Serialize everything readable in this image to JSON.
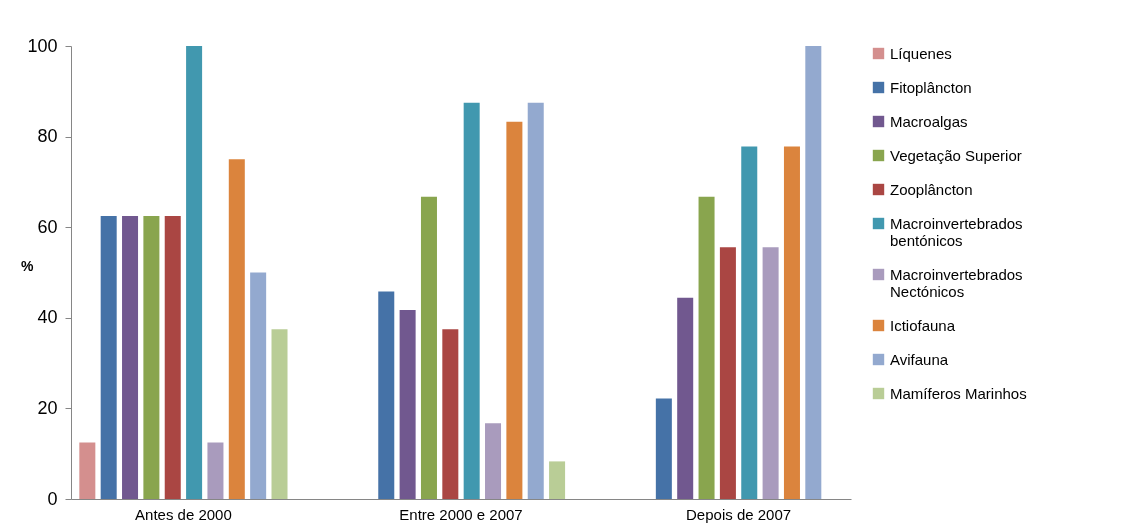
{
  "chart_data": {
    "type": "bar",
    "ylabel": "%",
    "categories": [
      "Antes de 2000",
      "Entre 2000 e 2007",
      "Depois de 2007"
    ],
    "series": [
      {
        "name": "Líquenes",
        "color": "#d48f8e",
        "values": [
          12.5,
          0,
          0
        ]
      },
      {
        "name": "Fitoplâncton",
        "color": "#4572a7",
        "values": [
          62.5,
          45.8,
          22.2
        ]
      },
      {
        "name": "Macroalgas",
        "color": "#71588f",
        "values": [
          62.5,
          41.7,
          44.4
        ]
      },
      {
        "name": "Vegetação Superior",
        "color": "#89a54e",
        "values": [
          62.5,
          66.7,
          66.7
        ]
      },
      {
        "name": "Zooplâncton",
        "color": "#aa4643",
        "values": [
          62.5,
          37.5,
          55.6
        ]
      },
      {
        "name": "Macroinvertebrados bentónicos",
        "color": "#4198af",
        "values": [
          100,
          87.5,
          77.8
        ]
      },
      {
        "name": "Macroinvertebrados Nectónicos",
        "color": "#a99bbd",
        "values": [
          12.5,
          16.7,
          55.6
        ]
      },
      {
        "name": "Ictiofauna",
        "color": "#db843d",
        "values": [
          75,
          83.3,
          77.8
        ]
      },
      {
        "name": "Avifauna",
        "color": "#93a9cf",
        "values": [
          50,
          87.5,
          100
        ]
      },
      {
        "name": "Mamíferos Marinhos",
        "color": "#b9cd96",
        "values": [
          37.5,
          8.3,
          0
        ]
      }
    ],
    "ylim": [
      0,
      100
    ],
    "yticks": [
      0,
      20,
      40,
      60,
      80,
      100
    ],
    "grid": false,
    "legend": "right"
  }
}
